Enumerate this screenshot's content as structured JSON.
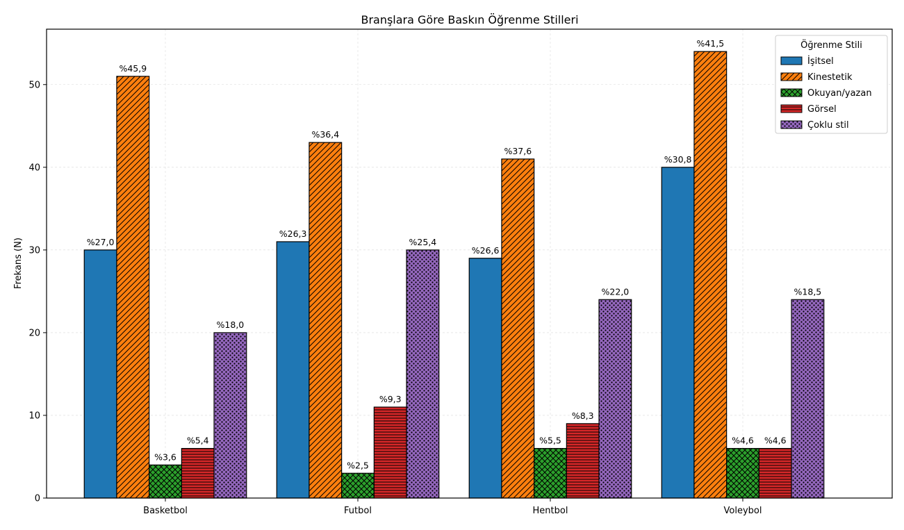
{
  "chart_data": {
    "type": "bar",
    "title": "Branşlara Göre Baskın Öğrenme Stilleri",
    "xlabel": "",
    "ylabel": "Frekans (N)",
    "ylim": [
      0,
      56.7
    ],
    "yticks": [
      0,
      10,
      20,
      30,
      40,
      50
    ],
    "grid": true,
    "categories": [
      "Basketbol",
      "Futbol",
      "Hentbol",
      "Voleybol"
    ],
    "series": [
      {
        "name": "İşitsel",
        "color": "#1f77b4",
        "pattern": "none",
        "values": [
          30,
          31,
          29,
          40
        ],
        "labels": [
          "%27,0",
          "%26,3",
          "%26,6",
          "%30,8"
        ]
      },
      {
        "name": "Kinestetik",
        "color": "#ff7f0e",
        "pattern": "diagonal",
        "values": [
          51,
          43,
          41,
          54
        ],
        "labels": [
          "%45,9",
          "%36,4",
          "%37,6",
          "%41,5"
        ]
      },
      {
        "name": "Okuyan/yazan",
        "color": "#2ca02c",
        "pattern": "crosshatch",
        "values": [
          4,
          3,
          6,
          6
        ],
        "labels": [
          "%3,6",
          "%2,5",
          "%5,5",
          "%4,6"
        ]
      },
      {
        "name": "Görsel",
        "color": "#d62728",
        "pattern": "horizontal",
        "values": [
          6,
          11,
          9,
          6
        ],
        "labels": [
          "%5,4",
          "%9,3",
          "%8,3",
          "%4,6"
        ]
      },
      {
        "name": "Çoklu stil",
        "color": "#9467bd",
        "pattern": "dots",
        "values": [
          20,
          30,
          24,
          24
        ],
        "labels": [
          "%18,0",
          "%25,4",
          "%22,0",
          "%18,5"
        ]
      }
    ],
    "legend": {
      "title": "Öğrenme Stili",
      "position": "top-right"
    }
  }
}
